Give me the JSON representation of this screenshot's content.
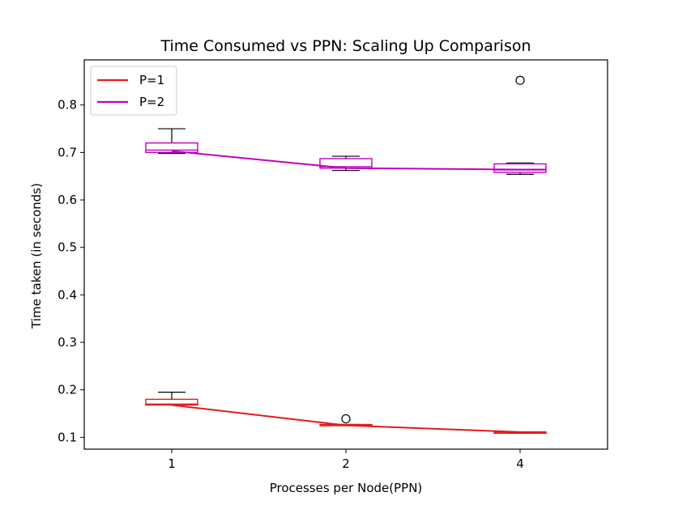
{
  "chart_data": {
    "type": "box",
    "title": "Time Consumed vs PPN: Scaling Up Comparison",
    "xlabel": "Processes per Node(PPN)",
    "ylabel": "Time taken (in seconds)",
    "categories": [
      "1",
      "2",
      "4"
    ],
    "ylim": [
      0.075,
      0.895
    ],
    "yticks": [
      0.1,
      0.2,
      0.3,
      0.4,
      0.5,
      0.6,
      0.7,
      0.8
    ],
    "ytick_labels": [
      "0.1",
      "0.2",
      "0.3",
      "0.4",
      "0.5",
      "0.6",
      "0.7",
      "0.8"
    ],
    "grid": false,
    "legend_position": "top-left",
    "series": [
      {
        "name": "P=1",
        "color": "#e41a1c",
        "line": [
          0.168,
          0.125,
          0.111
        ],
        "boxes": [
          {
            "whisker_low": 0.168,
            "q1": 0.168,
            "median": 0.17,
            "q3": 0.18,
            "whisker_high": 0.195,
            "outliers": []
          },
          {
            "whisker_low": 0.125,
            "q1": 0.125,
            "median": 0.126,
            "q3": 0.127,
            "whisker_high": 0.127,
            "outliers": [
              0.139
            ]
          },
          {
            "whisker_low": 0.11,
            "q1": 0.11,
            "median": 0.111,
            "q3": 0.111,
            "whisker_high": 0.111,
            "outliers": []
          }
        ]
      },
      {
        "name": "P=2",
        "color": "#bf00bf",
        "line": [
          0.703,
          0.667,
          0.664
        ],
        "boxes": [
          {
            "whisker_low": 0.698,
            "q1": 0.7,
            "median": 0.705,
            "q3": 0.72,
            "whisker_high": 0.75,
            "outliers": []
          },
          {
            "whisker_low": 0.662,
            "q1": 0.667,
            "median": 0.67,
            "q3": 0.687,
            "whisker_high": 0.692,
            "outliers": []
          },
          {
            "whisker_low": 0.654,
            "q1": 0.658,
            "median": 0.663,
            "q3": 0.676,
            "whisker_high": 0.678,
            "outliers": [
              0.852
            ]
          }
        ]
      }
    ]
  }
}
